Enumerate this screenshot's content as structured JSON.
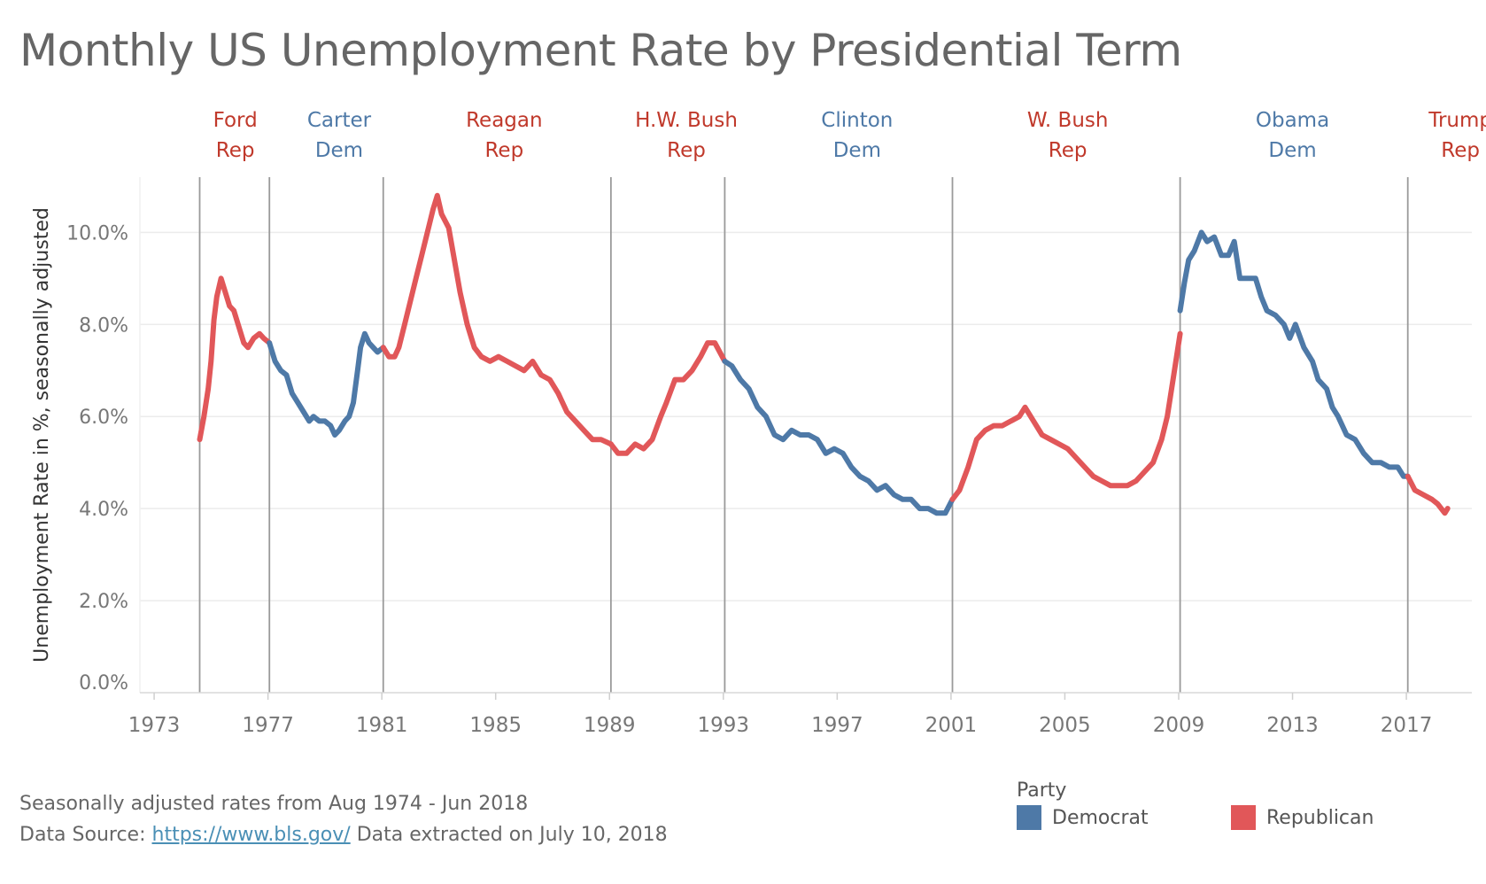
{
  "chart_data": {
    "type": "line",
    "title": "Monthly US Unemployment Rate by Presidential Term",
    "ylabel": "Unemployment Rate in %, seasonally adjusted",
    "xlabel": "",
    "ylim": [
      0,
      11.2
    ],
    "xlim": [
      1972.5,
      2019.3
    ],
    "grid": true,
    "y_ticks": [
      {
        "value": 0,
        "label": "0.0%"
      },
      {
        "value": 2,
        "label": "2.0%"
      },
      {
        "value": 4,
        "label": "4.0%"
      },
      {
        "value": 6,
        "label": "6.0%"
      },
      {
        "value": 8,
        "label": "8.0%"
      },
      {
        "value": 10,
        "label": "10.0%"
      }
    ],
    "x_ticks": [
      {
        "value": 1973,
        "label": "1973"
      },
      {
        "value": 1977,
        "label": "1977"
      },
      {
        "value": 1981,
        "label": "1981"
      },
      {
        "value": 1985,
        "label": "1985"
      },
      {
        "value": 1989,
        "label": "1989"
      },
      {
        "value": 1993,
        "label": "1993"
      },
      {
        "value": 1997,
        "label": "1997"
      },
      {
        "value": 2001,
        "label": "2001"
      },
      {
        "value": 2005,
        "label": "2005"
      },
      {
        "value": 2009,
        "label": "2009"
      },
      {
        "value": 2013,
        "label": "2013"
      },
      {
        "value": 2017,
        "label": "2017"
      }
    ],
    "term_boundaries": [
      1974.6,
      1977.05,
      1981.05,
      1989.05,
      1993.05,
      2001.05,
      2009.05,
      2017.05
    ],
    "terms": [
      {
        "president": "Ford",
        "party_label": "Rep",
        "party": "Republican",
        "label_x": 1975.85
      },
      {
        "president": "Carter",
        "party_label": "Dem",
        "party": "Democrat",
        "label_x": 1979.5
      },
      {
        "president": "Reagan",
        "party_label": "Rep",
        "party": "Republican",
        "label_x": 1985.3
      },
      {
        "president": "H.W. Bush",
        "party_label": "Rep",
        "party": "Republican",
        "label_x": 1991.7
      },
      {
        "president": "Clinton",
        "party_label": "Dem",
        "party": "Democrat",
        "label_x": 1997.7
      },
      {
        "president": "W. Bush",
        "party_label": "Rep",
        "party": "Republican",
        "label_x": 2005.1
      },
      {
        "president": "Obama",
        "party_label": "Dem",
        "party": "Democrat",
        "label_x": 2013.0
      },
      {
        "president": "Trump",
        "party_label": "Rep",
        "party": "Republican",
        "label_x": 2018.9
      }
    ],
    "series": [
      {
        "name": "Ford",
        "party": "Republican",
        "points": [
          [
            1974.6,
            5.5
          ],
          [
            1974.75,
            6.0
          ],
          [
            1974.9,
            6.6
          ],
          [
            1975.0,
            7.2
          ],
          [
            1975.1,
            8.1
          ],
          [
            1975.2,
            8.6
          ],
          [
            1975.35,
            9.0
          ],
          [
            1975.5,
            8.7
          ],
          [
            1975.65,
            8.4
          ],
          [
            1975.8,
            8.3
          ],
          [
            1976.0,
            7.9
          ],
          [
            1976.15,
            7.6
          ],
          [
            1976.3,
            7.5
          ],
          [
            1976.5,
            7.7
          ],
          [
            1976.7,
            7.8
          ],
          [
            1976.85,
            7.7
          ],
          [
            1977.05,
            7.6
          ]
        ]
      },
      {
        "name": "Carter",
        "party": "Democrat",
        "points": [
          [
            1977.05,
            7.6
          ],
          [
            1977.25,
            7.2
          ],
          [
            1977.45,
            7.0
          ],
          [
            1977.65,
            6.9
          ],
          [
            1977.85,
            6.5
          ],
          [
            1978.05,
            6.3
          ],
          [
            1978.25,
            6.1
          ],
          [
            1978.45,
            5.9
          ],
          [
            1978.6,
            6.0
          ],
          [
            1978.8,
            5.9
          ],
          [
            1979.0,
            5.9
          ],
          [
            1979.2,
            5.8
          ],
          [
            1979.35,
            5.6
          ],
          [
            1979.5,
            5.7
          ],
          [
            1979.7,
            5.9
          ],
          [
            1979.85,
            6.0
          ],
          [
            1980.0,
            6.3
          ],
          [
            1980.15,
            7.0
          ],
          [
            1980.25,
            7.5
          ],
          [
            1980.4,
            7.8
          ],
          [
            1980.55,
            7.6
          ],
          [
            1980.7,
            7.5
          ],
          [
            1980.85,
            7.4
          ],
          [
            1981.05,
            7.5
          ]
        ]
      },
      {
        "name": "Reagan",
        "party": "Republican",
        "points": [
          [
            1981.05,
            7.5
          ],
          [
            1981.25,
            7.3
          ],
          [
            1981.45,
            7.3
          ],
          [
            1981.6,
            7.5
          ],
          [
            1981.8,
            8.0
          ],
          [
            1982.0,
            8.5
          ],
          [
            1982.2,
            9.0
          ],
          [
            1982.4,
            9.5
          ],
          [
            1982.6,
            10.0
          ],
          [
            1982.8,
            10.5
          ],
          [
            1982.95,
            10.8
          ],
          [
            1983.1,
            10.4
          ],
          [
            1983.35,
            10.1
          ],
          [
            1983.55,
            9.4
          ],
          [
            1983.75,
            8.7
          ],
          [
            1984.0,
            8.0
          ],
          [
            1984.25,
            7.5
          ],
          [
            1984.5,
            7.3
          ],
          [
            1984.8,
            7.2
          ],
          [
            1985.1,
            7.3
          ],
          [
            1985.4,
            7.2
          ],
          [
            1985.7,
            7.1
          ],
          [
            1986.0,
            7.0
          ],
          [
            1986.3,
            7.2
          ],
          [
            1986.6,
            6.9
          ],
          [
            1986.9,
            6.8
          ],
          [
            1987.2,
            6.5
          ],
          [
            1987.5,
            6.1
          ],
          [
            1987.8,
            5.9
          ],
          [
            1988.1,
            5.7
          ],
          [
            1988.4,
            5.5
          ],
          [
            1988.7,
            5.5
          ],
          [
            1989.05,
            5.4
          ]
        ]
      },
      {
        "name": "H.W. Bush",
        "party": "Republican",
        "points": [
          [
            1989.05,
            5.4
          ],
          [
            1989.3,
            5.2
          ],
          [
            1989.6,
            5.2
          ],
          [
            1989.9,
            5.4
          ],
          [
            1990.2,
            5.3
          ],
          [
            1990.5,
            5.5
          ],
          [
            1990.8,
            6.0
          ],
          [
            1991.0,
            6.3
          ],
          [
            1991.3,
            6.8
          ],
          [
            1991.6,
            6.8
          ],
          [
            1991.9,
            7.0
          ],
          [
            1992.2,
            7.3
          ],
          [
            1992.45,
            7.6
          ],
          [
            1992.7,
            7.6
          ],
          [
            1993.05,
            7.2
          ]
        ]
      },
      {
        "name": "Clinton",
        "party": "Democrat",
        "points": [
          [
            1993.05,
            7.2
          ],
          [
            1993.3,
            7.1
          ],
          [
            1993.6,
            6.8
          ],
          [
            1993.9,
            6.6
          ],
          [
            1994.2,
            6.2
          ],
          [
            1994.5,
            6.0
          ],
          [
            1994.8,
            5.6
          ],
          [
            1995.1,
            5.5
          ],
          [
            1995.4,
            5.7
          ],
          [
            1995.7,
            5.6
          ],
          [
            1996.0,
            5.6
          ],
          [
            1996.3,
            5.5
          ],
          [
            1996.6,
            5.2
          ],
          [
            1996.9,
            5.3
          ],
          [
            1997.2,
            5.2
          ],
          [
            1997.5,
            4.9
          ],
          [
            1997.8,
            4.7
          ],
          [
            1998.1,
            4.6
          ],
          [
            1998.4,
            4.4
          ],
          [
            1998.7,
            4.5
          ],
          [
            1999.0,
            4.3
          ],
          [
            1999.3,
            4.2
          ],
          [
            1999.6,
            4.2
          ],
          [
            1999.9,
            4.0
          ],
          [
            2000.2,
            4.0
          ],
          [
            2000.5,
            3.9
          ],
          [
            2000.8,
            3.9
          ],
          [
            2001.05,
            4.2
          ]
        ]
      },
      {
        "name": "W. Bush",
        "party": "Republican",
        "points": [
          [
            2001.05,
            4.2
          ],
          [
            2001.3,
            4.4
          ],
          [
            2001.6,
            4.9
          ],
          [
            2001.9,
            5.5
          ],
          [
            2002.2,
            5.7
          ],
          [
            2002.5,
            5.8
          ],
          [
            2002.8,
            5.8
          ],
          [
            2003.1,
            5.9
          ],
          [
            2003.4,
            6.0
          ],
          [
            2003.6,
            6.2
          ],
          [
            2003.9,
            5.9
          ],
          [
            2004.2,
            5.6
          ],
          [
            2004.5,
            5.5
          ],
          [
            2004.8,
            5.4
          ],
          [
            2005.1,
            5.3
          ],
          [
            2005.4,
            5.1
          ],
          [
            2005.7,
            4.9
          ],
          [
            2006.0,
            4.7
          ],
          [
            2006.3,
            4.6
          ],
          [
            2006.6,
            4.5
          ],
          [
            2006.9,
            4.5
          ],
          [
            2007.2,
            4.5
          ],
          [
            2007.5,
            4.6
          ],
          [
            2007.8,
            4.8
          ],
          [
            2008.1,
            5.0
          ],
          [
            2008.4,
            5.5
          ],
          [
            2008.6,
            6.0
          ],
          [
            2008.8,
            6.8
          ],
          [
            2009.05,
            7.8
          ]
        ]
      },
      {
        "name": "Obama",
        "party": "Democrat",
        "points": [
          [
            2009.05,
            8.3
          ],
          [
            2009.2,
            8.9
          ],
          [
            2009.35,
            9.4
          ],
          [
            2009.55,
            9.6
          ],
          [
            2009.8,
            10.0
          ],
          [
            2010.0,
            9.8
          ],
          [
            2010.25,
            9.9
          ],
          [
            2010.5,
            9.5
          ],
          [
            2010.75,
            9.5
          ],
          [
            2010.95,
            9.8
          ],
          [
            2011.15,
            9.0
          ],
          [
            2011.4,
            9.0
          ],
          [
            2011.7,
            9.0
          ],
          [
            2011.9,
            8.6
          ],
          [
            2012.1,
            8.3
          ],
          [
            2012.4,
            8.2
          ],
          [
            2012.7,
            8.0
          ],
          [
            2012.9,
            7.7
          ],
          [
            2013.1,
            8.0
          ],
          [
            2013.4,
            7.5
          ],
          [
            2013.7,
            7.2
          ],
          [
            2013.9,
            6.8
          ],
          [
            2014.2,
            6.6
          ],
          [
            2014.4,
            6.2
          ],
          [
            2014.6,
            6.0
          ],
          [
            2014.9,
            5.6
          ],
          [
            2015.2,
            5.5
          ],
          [
            2015.5,
            5.2
          ],
          [
            2015.8,
            5.0
          ],
          [
            2016.1,
            5.0
          ],
          [
            2016.4,
            4.9
          ],
          [
            2016.7,
            4.9
          ],
          [
            2016.9,
            4.7
          ],
          [
            2017.05,
            4.7
          ]
        ]
      },
      {
        "name": "Trump",
        "party": "Republican",
        "points": [
          [
            2017.05,
            4.7
          ],
          [
            2017.3,
            4.4
          ],
          [
            2017.6,
            4.3
          ],
          [
            2017.9,
            4.2
          ],
          [
            2018.1,
            4.1
          ],
          [
            2018.35,
            3.9
          ],
          [
            2018.45,
            4.0
          ]
        ]
      }
    ]
  },
  "colors": {
    "Democrat": "#4e79a7",
    "Republican": "#e15759",
    "DemLabel": "#4e79a7",
    "RepLabel": "#c0392b"
  },
  "footer": {
    "note": "Seasonally adjusted rates from Aug 1974 - Jun 2018",
    "source_prefix": "Data Source: ",
    "source_link": "https://www.bls.gov/",
    "source_suffix": " Data extracted on July 10, 2018"
  },
  "legend": {
    "title": "Party",
    "items": [
      {
        "label": "Democrat",
        "color": "#4e79a7"
      },
      {
        "label": "Republican",
        "color": "#e15759"
      }
    ]
  }
}
